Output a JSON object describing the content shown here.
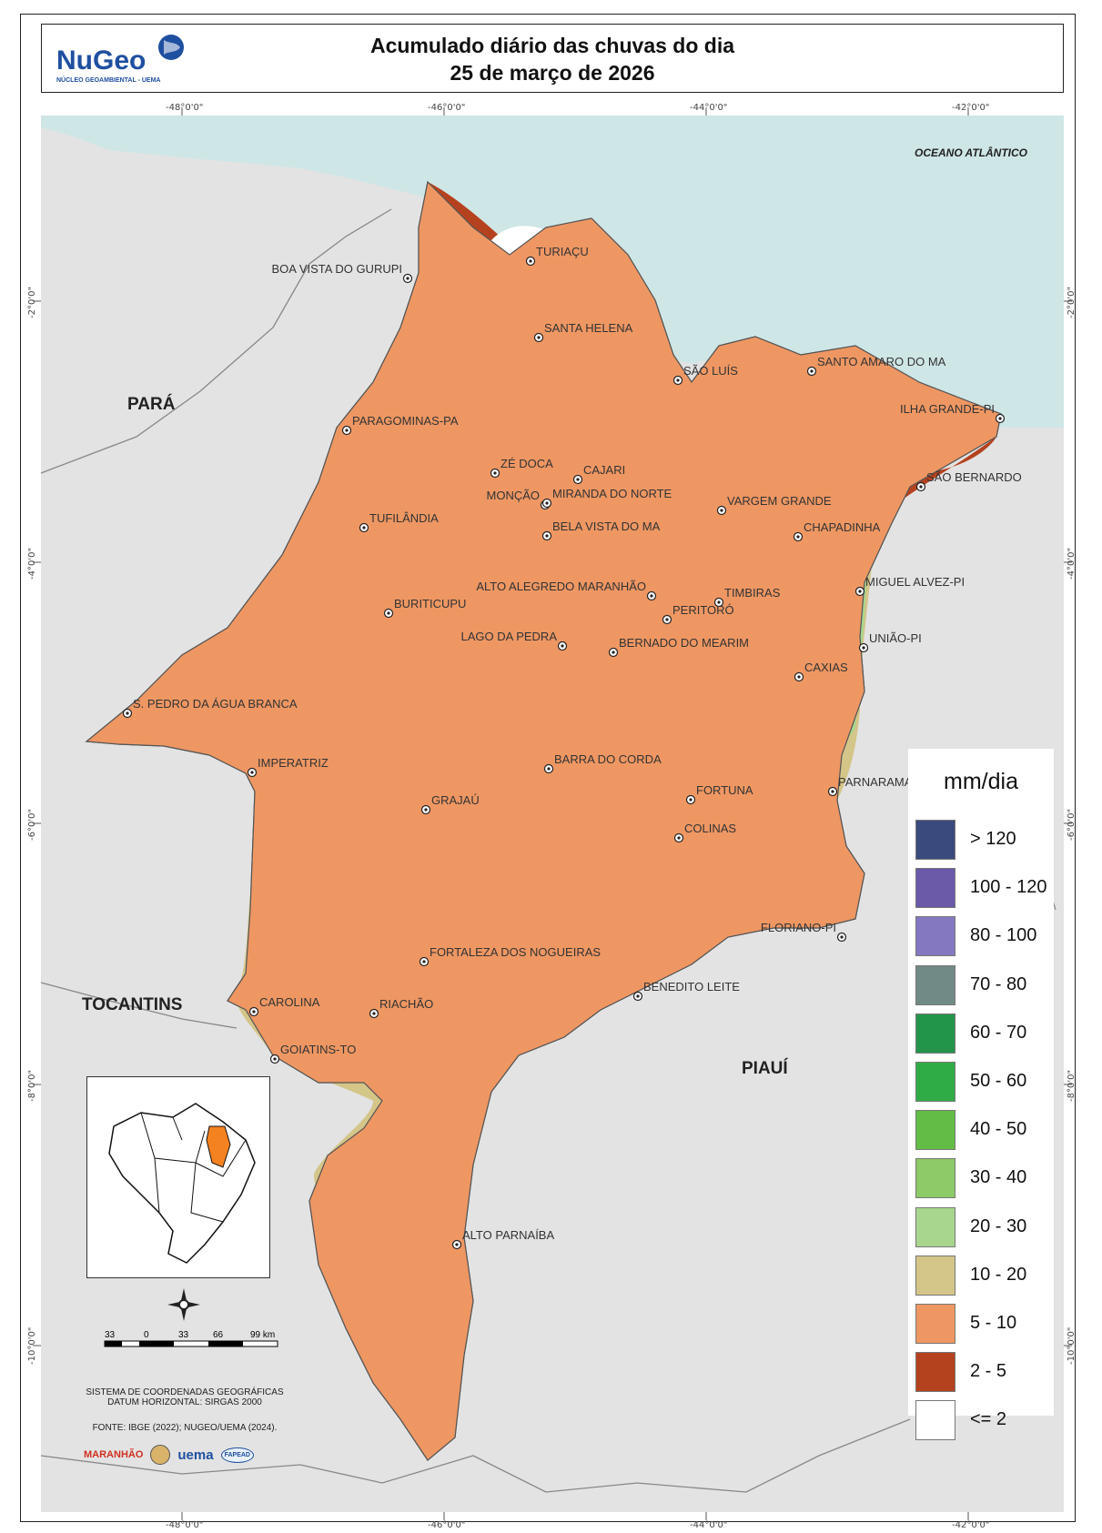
{
  "title": {
    "line1": "Acumulado diário das chuvas do dia",
    "line2": "25 de março de 2026"
  },
  "logo": {
    "name": "NuGeo",
    "subtitle": "NÚCLEO GEOAMBIENTAL - UEMA"
  },
  "coords": {
    "lon": [
      "-48°0'0\"",
      "-46°0'0\"",
      "-44°0'0\"",
      "-42°0'0\""
    ],
    "lat": [
      "-2°0'0\"",
      "-4°0'0\"",
      "-6°0'0\"",
      "-8°0'0\"",
      "-10°0'0\""
    ]
  },
  "regions": {
    "para": "PARÁ",
    "tocantins": "TOCANTINS",
    "piaui": "PIAUÍ",
    "ocean": "OCEANO ATLÂNTICO"
  },
  "cities": [
    "TURIAÇU",
    "BOA VISTA DO GURUPI",
    "SANTA HELENA",
    "SÃO LUÍS",
    "SANTO AMARO DO MA",
    "PARAGOMINAS-PA",
    "ILHA GRANDE-PI",
    "ZÉ DOCA",
    "CAJARI",
    "MONÇÃO",
    "SÃO BERNARDO",
    "MIRANDA DO NORTE",
    "VARGEM GRANDE",
    "TUFILÂNDIA",
    "BELA VISTA DO MA",
    "CHAPADINHA",
    "ALTO ALEGREDO MARANHÃO",
    "MIGUEL ALVEZ-PI",
    "BURITICUPU",
    "TIMBIRAS",
    "PERITORÓ",
    "LAGO DA PEDRA",
    "BERNADO DO MEARIM",
    "UNIÃO-PI",
    "CAXIAS",
    "S. PEDRO DA ÁGUA BRANCA",
    "IMPERATRIZ",
    "BARRA DO CORDA",
    "FORTUNA",
    "PARNARAMA",
    "GRAJAÚ",
    "COLINAS",
    "FLORIANO-PI",
    "FORTALEZA DOS NOGUEIRAS",
    "BENEDITO LEITE",
    "CAROLINA",
    "RIACHÃO",
    "GOIATINS-TO",
    "ALTO PARNAÍBA"
  ],
  "legend": {
    "title": "mm/dia",
    "items": [
      {
        "label": "> 120",
        "color": "#3a4a7d"
      },
      {
        "label": "100 - 120",
        "color": "#6a5aa8"
      },
      {
        "label": "80 - 100",
        "color": "#8478c0"
      },
      {
        "label": "70 - 80",
        "color": "#718a86"
      },
      {
        "label": "60 - 70",
        "color": "#23954a"
      },
      {
        "label": "50 - 60",
        "color": "#2fac46"
      },
      {
        "label": "40 - 50",
        "color": "#63bc46"
      },
      {
        "label": "30 - 40",
        "color": "#8ccb68"
      },
      {
        "label": "20 - 30",
        "color": "#a9d68e"
      },
      {
        "label": "10 - 20",
        "color": "#d4c588"
      },
      {
        "label": "5 - 10",
        "color": "#ee9763"
      },
      {
        "label": "2 - 5",
        "color": "#b5421f"
      },
      {
        "label": "<= 2",
        "color": "#ffffff"
      }
    ]
  },
  "scale": {
    "ticks": [
      "33",
      "0",
      "33",
      "66",
      "99 km"
    ]
  },
  "datum": {
    "line1": "SISTEMA DE COORDENADAS GEOGRÁFICAS",
    "line2": "DATUM HORIZONTAL: SIRGAS 2000"
  },
  "source": "FONTE: IBGE (2022); NUGEO/UEMA (2024).",
  "partners": [
    "MARANHÃO",
    "uema",
    "FAPEAD"
  ]
}
